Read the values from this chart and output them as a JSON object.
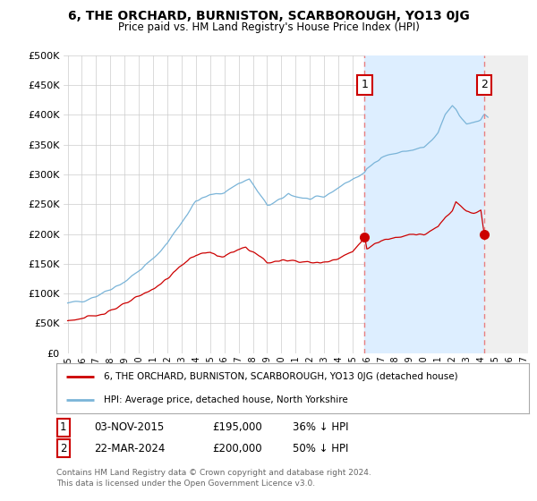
{
  "title": "6, THE ORCHARD, BURNISTON, SCARBOROUGH, YO13 0JG",
  "subtitle": "Price paid vs. HM Land Registry's House Price Index (HPI)",
  "hpi_color": "#7ab4d8",
  "price_color": "#cc0000",
  "dashed_color": "#e88080",
  "shade_color": "#ddeeff",
  "hatch_color": "#d8d8d8",
  "ylim": [
    0,
    500000
  ],
  "yticks": [
    0,
    50000,
    100000,
    150000,
    200000,
    250000,
    300000,
    350000,
    400000,
    450000,
    500000
  ],
  "ytick_labels": [
    "£0",
    "£50K",
    "£100K",
    "£150K",
    "£200K",
    "£250K",
    "£300K",
    "£350K",
    "£400K",
    "£450K",
    "£500K"
  ],
  "xlim_start": 1995.0,
  "xlim_end": 2027.0,
  "sale1_year": 2015.84,
  "sale1_price": 195000,
  "sale1_label": "1",
  "sale1_date": "03-NOV-2015",
  "sale1_pct": "36% ↓ HPI",
  "sale2_year": 2024.23,
  "sale2_price": 200000,
  "sale2_label": "2",
  "sale2_date": "22-MAR-2024",
  "sale2_pct": "50% ↓ HPI",
  "legend_label1": "6, THE ORCHARD, BURNISTON, SCARBOROUGH, YO13 0JG (detached house)",
  "legend_label2": "HPI: Average price, detached house, North Yorkshire",
  "footnote": "Contains HM Land Registry data © Crown copyright and database right 2024.\nThis data is licensed under the Open Government Licence v3.0.",
  "bg_color": "#ffffff",
  "grid_color": "#cccccc"
}
